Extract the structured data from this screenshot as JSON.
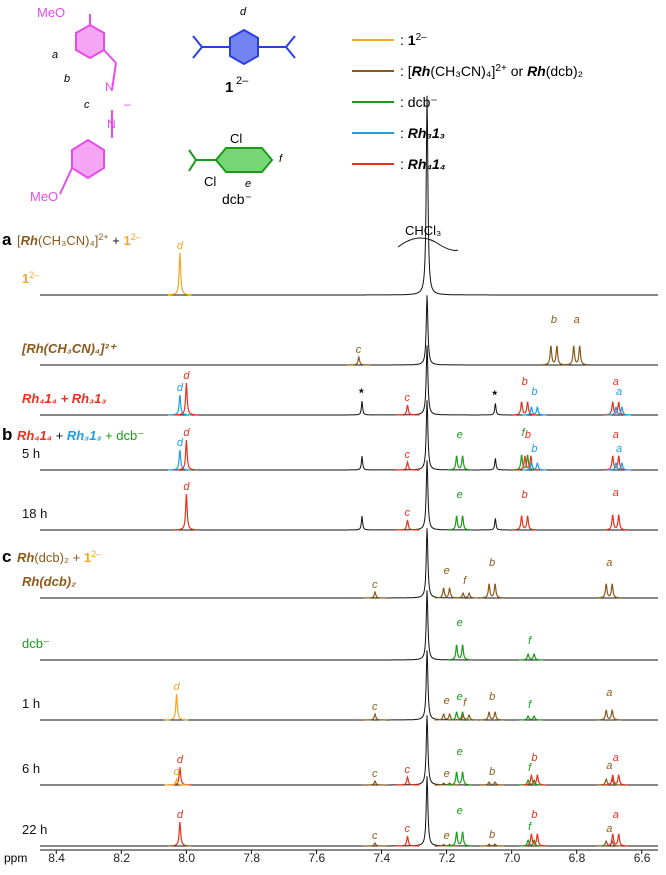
{
  "colors": {
    "ligand": "#f5a623",
    "rh_complex": "#8b5a1b",
    "dcb": "#1a9b1a",
    "cage3": "#1f9ee8",
    "cage4": "#e8321e",
    "black": "#111111",
    "magenta": "#e84ce8",
    "blue": "#2a3fe0"
  },
  "structures": {
    "amidinate": {
      "label_a": "a",
      "label_b": "b",
      "label_c": "c",
      "meo_top": "MeO",
      "meo_bottom": "MeO",
      "n_top": "N",
      "n_bottom": "N",
      "charge": "–"
    },
    "dicarboxylate": {
      "label_d": "d",
      "name": "1",
      "charge_sup": "2–"
    },
    "dcb": {
      "label_e": "e",
      "label_f": "f",
      "cl_top": "Cl",
      "cl_bottom": "Cl",
      "name": "dcb⁻"
    }
  },
  "legend": [
    {
      "key": "ligand",
      "pre": ": ",
      "bold": "1",
      "sup": "2–",
      "post": ""
    },
    {
      "key": "rh",
      "pre": ": [",
      "bold": "Rh",
      "mid": "(CH₃CN)₄]",
      "sup": "2+",
      "post": " or ",
      "bold2": "Rh",
      "tail": "(dcb)₂"
    },
    {
      "key": "dcb",
      "pre": ": dcb⁻"
    },
    {
      "key": "cage3",
      "pre": ": ",
      "bold": "Rh₃1₃"
    },
    {
      "key": "cage4",
      "pre": ": ",
      "bold": "Rh₄1₄"
    }
  ],
  "chart_data": {
    "type": "line",
    "title": "",
    "xlabel": "ppm",
    "x_range": [
      8.45,
      6.55
    ],
    "x_ticks": [
      "8.4",
      "8.2",
      "8.0",
      "7.8",
      "7.6",
      "7.4",
      "7.2",
      "7.0",
      "6.8",
      "6.6"
    ],
    "solvent_label": "CHCl₃",
    "solvent_ppm": 7.26,
    "panels": [
      {
        "letter": "a",
        "title_parts": [
          "[",
          "Rh",
          "(CH₃CN)₄]",
          "2+",
          " + ",
          "1",
          "2–"
        ]
      },
      {
        "letter": "b",
        "title_parts": [
          "Rh₄1₄",
          " + ",
          "Rh₃1₃",
          " + dcb⁻"
        ]
      },
      {
        "letter": "c",
        "title_parts": [
          "Rh",
          "(dcb)₂ + ",
          "1",
          "2–"
        ]
      }
    ],
    "traces": [
      {
        "name": "1²⁻",
        "label": "1",
        "label_sup": "2–",
        "label_color": "ligand",
        "peaks": [
          {
            "ppm": 8.02,
            "h": 42,
            "lbl": "d",
            "c": "ligand"
          }
        ]
      },
      {
        "name": "[Rh(CH3CN)4]2+",
        "label": "[Rh(CH₃CN)₄]²⁺",
        "label_color": "rh_complex",
        "peaks": [
          {
            "ppm": 7.47,
            "h": 8,
            "lbl": "c",
            "c": "rh_complex"
          },
          {
            "ppm": 6.87,
            "h": 38,
            "lbl": "b",
            "c": "rh_complex"
          },
          {
            "ppm": 6.8,
            "h": 38,
            "lbl": "a",
            "c": "rh_complex"
          }
        ]
      },
      {
        "name": "Rh4 14 + Rh3 13",
        "label": "Rh₄1₄ + Rh₃1₃",
        "label_color": "cage4",
        "peaks": [
          {
            "ppm": 8.02,
            "h": 20,
            "lbl": "d",
            "c": "cage3"
          },
          {
            "ppm": 8.0,
            "h": 32,
            "lbl": "d",
            "c": "cage4"
          },
          {
            "ppm": 7.46,
            "h": 14,
            "lbl": "*",
            "c": "black"
          },
          {
            "ppm": 7.32,
            "h": 10,
            "lbl": "c",
            "c": "cage4"
          },
          {
            "ppm": 7.05,
            "h": 12,
            "lbl": "*",
            "c": "black"
          },
          {
            "ppm": 6.96,
            "h": 26,
            "lbl": "b",
            "c": "cage4"
          },
          {
            "ppm": 6.93,
            "h": 16,
            "lbl": "b",
            "c": "cage3"
          },
          {
            "ppm": 6.68,
            "h": 26,
            "lbl": "a",
            "c": "cage4"
          },
          {
            "ppm": 6.67,
            "h": 16,
            "lbl": "a",
            "c": "cage3"
          }
        ]
      },
      {
        "name": "5 h",
        "label": "5 h",
        "label_color": "black",
        "peaks": [
          {
            "ppm": 8.02,
            "h": 20,
            "lbl": "d",
            "c": "cage3"
          },
          {
            "ppm": 8.0,
            "h": 30,
            "lbl": "d",
            "c": "cage4"
          },
          {
            "ppm": 7.46,
            "h": 14,
            "lbl": "",
            "c": "black"
          },
          {
            "ppm": 7.32,
            "h": 8,
            "lbl": "c",
            "c": "cage4"
          },
          {
            "ppm": 7.16,
            "h": 28,
            "lbl": "e",
            "c": "dcb"
          },
          {
            "ppm": 7.05,
            "h": 12,
            "lbl": "",
            "c": "black"
          },
          {
            "ppm": 6.96,
            "h": 30,
            "lbl": "f",
            "c": "dcb"
          },
          {
            "ppm": 6.95,
            "h": 28,
            "lbl": "b",
            "c": "cage4"
          },
          {
            "ppm": 6.93,
            "h": 14,
            "lbl": "b",
            "c": "cage3"
          },
          {
            "ppm": 6.68,
            "h": 28,
            "lbl": "a",
            "c": "cage4"
          },
          {
            "ppm": 6.67,
            "h": 14,
            "lbl": "a",
            "c": "cage3"
          }
        ]
      },
      {
        "name": "18 h",
        "label": "18 h",
        "label_color": "black",
        "peaks": [
          {
            "ppm": 8.0,
            "h": 36,
            "lbl": "d",
            "c": "cage4"
          },
          {
            "ppm": 7.46,
            "h": 14,
            "lbl": "",
            "c": "black"
          },
          {
            "ppm": 7.32,
            "h": 10,
            "lbl": "c",
            "c": "cage4"
          },
          {
            "ppm": 7.16,
            "h": 28,
            "lbl": "e",
            "c": "dcb"
          },
          {
            "ppm": 7.05,
            "h": 12,
            "lbl": "",
            "c": "black"
          },
          {
            "ppm": 6.96,
            "h": 28,
            "lbl": "b",
            "c": "cage4"
          },
          {
            "ppm": 6.68,
            "h": 30,
            "lbl": "a",
            "c": "cage4"
          }
        ]
      },
      {
        "name": "Rh(dcb)2",
        "label": "Rh(dcb)₂",
        "label_color": "rh_complex",
        "peaks": [
          {
            "ppm": 7.42,
            "h": 6,
            "lbl": "c",
            "c": "rh_complex"
          },
          {
            "ppm": 7.2,
            "h": 20,
            "lbl": "e",
            "c": "rh_complex"
          },
          {
            "ppm": 7.14,
            "h": 10,
            "lbl": "f",
            "c": "rh_complex"
          },
          {
            "ppm": 7.06,
            "h": 28,
            "lbl": "b",
            "c": "rh_complex"
          },
          {
            "ppm": 6.7,
            "h": 28,
            "lbl": "a",
            "c": "rh_complex"
          }
        ]
      },
      {
        "name": "dcb-",
        "label": "dcb⁻",
        "label_color": "dcb",
        "peaks": [
          {
            "ppm": 7.16,
            "h": 30,
            "lbl": "e",
            "c": "dcb"
          },
          {
            "ppm": 6.94,
            "h": 12,
            "lbl": "f",
            "c": "dcb"
          }
        ]
      },
      {
        "name": "1 h",
        "label": "1 h",
        "label_color": "black",
        "peaks": [
          {
            "ppm": 8.03,
            "h": 26,
            "lbl": "d",
            "c": "ligand"
          },
          {
            "ppm": 7.42,
            "h": 6,
            "lbl": "c",
            "c": "rh_complex"
          },
          {
            "ppm": 7.2,
            "h": 12,
            "lbl": "e",
            "c": "rh_complex"
          },
          {
            "ppm": 7.16,
            "h": 16,
            "lbl": "e",
            "c": "dcb"
          },
          {
            "ppm": 7.14,
            "h": 10,
            "lbl": "f",
            "c": "rh_complex"
          },
          {
            "ppm": 7.06,
            "h": 16,
            "lbl": "b",
            "c": "rh_complex"
          },
          {
            "ppm": 6.94,
            "h": 8,
            "lbl": "f",
            "c": "dcb"
          },
          {
            "ppm": 6.7,
            "h": 20,
            "lbl": "a",
            "c": "rh_complex"
          }
        ]
      },
      {
        "name": "6 h",
        "label": "6 h",
        "label_color": "black",
        "peaks": [
          {
            "ppm": 8.02,
            "h": 18,
            "lbl": "d",
            "c": "cage4"
          },
          {
            "ppm": 8.03,
            "h": 6,
            "lbl": "d",
            "c": "ligand"
          },
          {
            "ppm": 7.42,
            "h": 4,
            "lbl": "c",
            "c": "rh_complex"
          },
          {
            "ppm": 7.32,
            "h": 8,
            "lbl": "c",
            "c": "cage4"
          },
          {
            "ppm": 7.2,
            "h": 4,
            "lbl": "e",
            "c": "rh_complex"
          },
          {
            "ppm": 7.16,
            "h": 26,
            "lbl": "e",
            "c": "dcb"
          },
          {
            "ppm": 7.06,
            "h": 6,
            "lbl": "b",
            "c": "rh_complex"
          },
          {
            "ppm": 6.94,
            "h": 10,
            "lbl": "f",
            "c": "dcb"
          },
          {
            "ppm": 6.93,
            "h": 20,
            "lbl": "b",
            "c": "cage4"
          },
          {
            "ppm": 6.7,
            "h": 12,
            "lbl": "a",
            "c": "rh_complex"
          },
          {
            "ppm": 6.68,
            "h": 20,
            "lbl": "a",
            "c": "cage4"
          }
        ]
      },
      {
        "name": "22 h",
        "label": "22 h",
        "label_color": "black",
        "peaks": [
          {
            "ppm": 8.02,
            "h": 24,
            "lbl": "d",
            "c": "cage4"
          },
          {
            "ppm": 7.42,
            "h": 3,
            "lbl": "c",
            "c": "rh_complex"
          },
          {
            "ppm": 7.32,
            "h": 10,
            "lbl": "c",
            "c": "cage4"
          },
          {
            "ppm": 7.2,
            "h": 3,
            "lbl": "e",
            "c": "rh_complex"
          },
          {
            "ppm": 7.16,
            "h": 28,
            "lbl": "e",
            "c": "dcb"
          },
          {
            "ppm": 7.06,
            "h": 4,
            "lbl": "b",
            "c": "rh_complex"
          },
          {
            "ppm": 6.94,
            "h": 12,
            "lbl": "f",
            "c": "dcb"
          },
          {
            "ppm": 6.93,
            "h": 24,
            "lbl": "b",
            "c": "cage4"
          },
          {
            "ppm": 6.7,
            "h": 10,
            "lbl": "a",
            "c": "rh_complex"
          },
          {
            "ppm": 6.68,
            "h": 24,
            "lbl": "a",
            "c": "cage4"
          }
        ]
      }
    ]
  }
}
